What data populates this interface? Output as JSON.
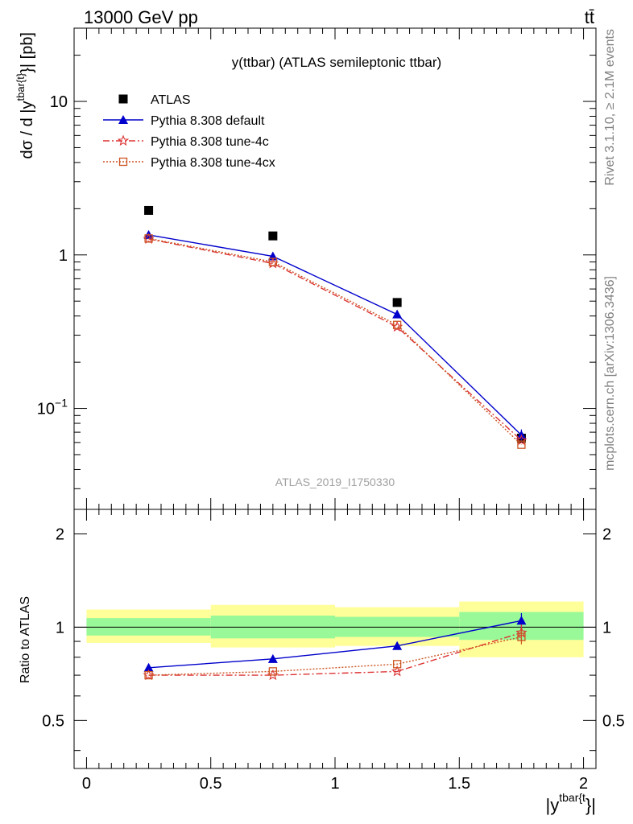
{
  "header": {
    "left": "13000 GeV pp",
    "right": "tt̄"
  },
  "side_text": {
    "rivet": "Rivet 3.1.10, ≥ 2.1M events",
    "mcplots": "mcplots.cern.ch [arXiv:1306.3436]"
  },
  "chart_data": [
    {
      "type": "line",
      "title": "y(ttbar) (ATLAS semileptonic ttbar)",
      "watermark": "ATLAS_2019_I1750330",
      "ylabel": "dσ / d |y^{tbar{t}}| [pb]",
      "xlim": [
        -0.05,
        2.05
      ],
      "ylim": [
        0.022,
        30
      ],
      "log_y": true,
      "y_ticks": [
        {
          "value": 0.1,
          "label": "10^-1"
        },
        {
          "value": 1,
          "label": "1"
        },
        {
          "value": 10,
          "label": "10"
        }
      ],
      "legend_position": "top-left",
      "legend": [
        "ATLAS",
        "Pythia 8.308 default",
        "Pythia 8.308 tune-4c",
        "Pythia 8.308 tune-4cx"
      ],
      "colors": {
        "ATLAS": "#000000",
        "default": "#0000cc",
        "tune4c": "#dd3333",
        "tune4cx": "#cc5522"
      },
      "series": [
        {
          "name": "ATLAS",
          "x": [
            0.25,
            0.75,
            1.25,
            1.75
          ],
          "y": [
            1.95,
            1.33,
            0.49,
            0.064
          ]
        },
        {
          "name": "Pythia 8.308 default",
          "x": [
            0.25,
            0.75,
            1.25,
            1.75
          ],
          "y": [
            1.35,
            0.98,
            0.41,
            0.067
          ],
          "yerr": [
            0,
            0,
            0.02,
            0.006
          ]
        },
        {
          "name": "Pythia 8.308 tune-4c",
          "x": [
            0.25,
            0.75,
            1.25,
            1.75
          ],
          "y": [
            1.27,
            0.88,
            0.34,
            0.062
          ]
        },
        {
          "name": "Pythia 8.308 tune-4cx",
          "x": [
            0.25,
            0.75,
            1.25,
            1.75
          ],
          "y": [
            1.28,
            0.9,
            0.35,
            0.058
          ]
        }
      ]
    },
    {
      "type": "line",
      "ylabel": "Ratio to ATLAS",
      "xlabel": "|y^{tbar{t}}|",
      "xlim": [
        -0.05,
        2.05
      ],
      "ylim": [
        0.35,
        2.4
      ],
      "log_y": true,
      "x_ticks": [
        0,
        0.5,
        1,
        1.5,
        2
      ],
      "x_tick_labels": [
        "0",
        "0.5",
        "1",
        "1.5",
        "2"
      ],
      "y_ticks": [
        0.5,
        1,
        2
      ],
      "y_tick_labels": [
        "0.5",
        "1",
        "2"
      ],
      "bands": [
        {
          "x0": 0,
          "x1": 0.5,
          "inner": [
            0.94,
            1.07
          ],
          "outer": [
            0.89,
            1.14
          ]
        },
        {
          "x0": 0.5,
          "x1": 1.0,
          "inner": [
            0.92,
            1.09
          ],
          "outer": [
            0.86,
            1.18
          ]
        },
        {
          "x0": 1.0,
          "x1": 1.5,
          "inner": [
            0.93,
            1.08
          ],
          "outer": [
            0.87,
            1.16
          ]
        },
        {
          "x0": 1.5,
          "x1": 2.0,
          "inner": [
            0.91,
            1.12
          ],
          "outer": [
            0.8,
            1.21
          ]
        }
      ],
      "band_colors": {
        "inner": "#99f999",
        "outer": "#ffff99"
      },
      "series": [
        {
          "name": "Pythia 8.308 default",
          "x": [
            0.25,
            0.75,
            1.25,
            1.75
          ],
          "y": [
            0.74,
            0.79,
            0.87,
            1.05
          ],
          "yerr": [
            0,
            0,
            0.02,
            0.06
          ]
        },
        {
          "name": "Pythia 8.308 tune-4c",
          "x": [
            0.25,
            0.75,
            1.25,
            1.75
          ],
          "y": [
            0.7,
            0.7,
            0.72,
            0.96
          ],
          "yerr": [
            0,
            0,
            0,
            0.06
          ]
        },
        {
          "name": "Pythia 8.308 tune-4cx",
          "x": [
            0.25,
            0.75,
            1.25,
            1.75
          ],
          "y": [
            0.7,
            0.72,
            0.76,
            0.93
          ],
          "yerr": [
            0,
            0,
            0,
            0.05
          ]
        }
      ]
    }
  ]
}
